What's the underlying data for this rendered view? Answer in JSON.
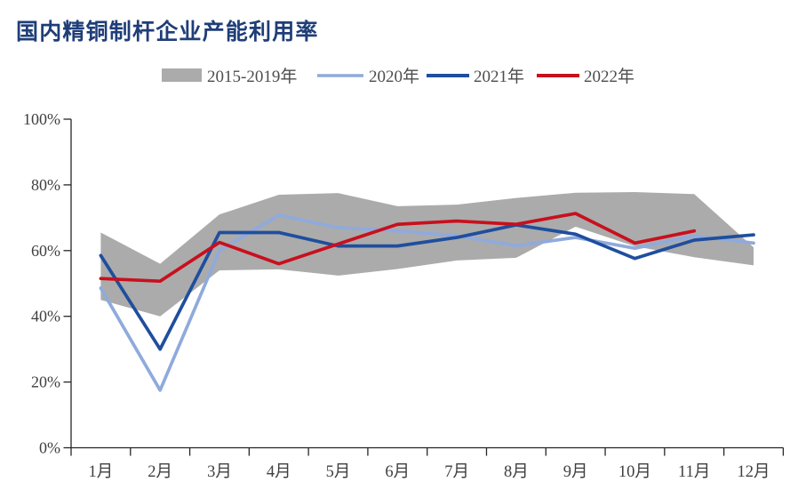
{
  "page": {
    "background": "#FFFFFF"
  },
  "chart_data": {
    "type": "line",
    "title": "国内精铜制杆企业产能利用率",
    "title_color": "#1F3E78",
    "categories": [
      "1月",
      "2月",
      "3月",
      "4月",
      "5月",
      "6月",
      "7月",
      "8月",
      "9月",
      "10月",
      "11月",
      "12月"
    ],
    "y_ticks": [
      "0%",
      "20%",
      "40%",
      "60%",
      "80%",
      "100%"
    ],
    "ylim": [
      0,
      100
    ],
    "grid": false,
    "legend_position": "top",
    "band": {
      "name": "2015-2019年",
      "color": "#ABABAB",
      "top": [
        65.5,
        56,
        71,
        77,
        77.5,
        73.5,
        74,
        76,
        77.6,
        77.8,
        77.2,
        61
      ],
      "bottom": [
        45,
        40,
        54,
        54.3,
        52.4,
        54.4,
        57,
        57.8,
        67.3,
        61.3,
        58,
        55.5
      ]
    },
    "series": [
      {
        "name": "2020年",
        "color": "#8FAADC",
        "values": [
          48.6,
          17.5,
          60,
          70.8,
          67,
          66,
          64.5,
          61.5,
          64,
          60.7,
          64.5,
          62.3
        ]
      },
      {
        "name": "2021年",
        "color": "#1F4E9E",
        "values": [
          58.5,
          30,
          65.5,
          65.5,
          61.4,
          61.4,
          64,
          67.8,
          65,
          57.6,
          63.2,
          64.8
        ]
      },
      {
        "name": "2022年",
        "color": "#C8101E",
        "values": [
          51.5,
          50.7,
          62.5,
          56,
          62,
          68,
          69,
          68,
          71.3,
          62.3,
          66,
          null
        ]
      }
    ],
    "axis_color": "#262626",
    "label_color": "#3F3F3F",
    "legend_text_color": "#4D4D4D"
  }
}
